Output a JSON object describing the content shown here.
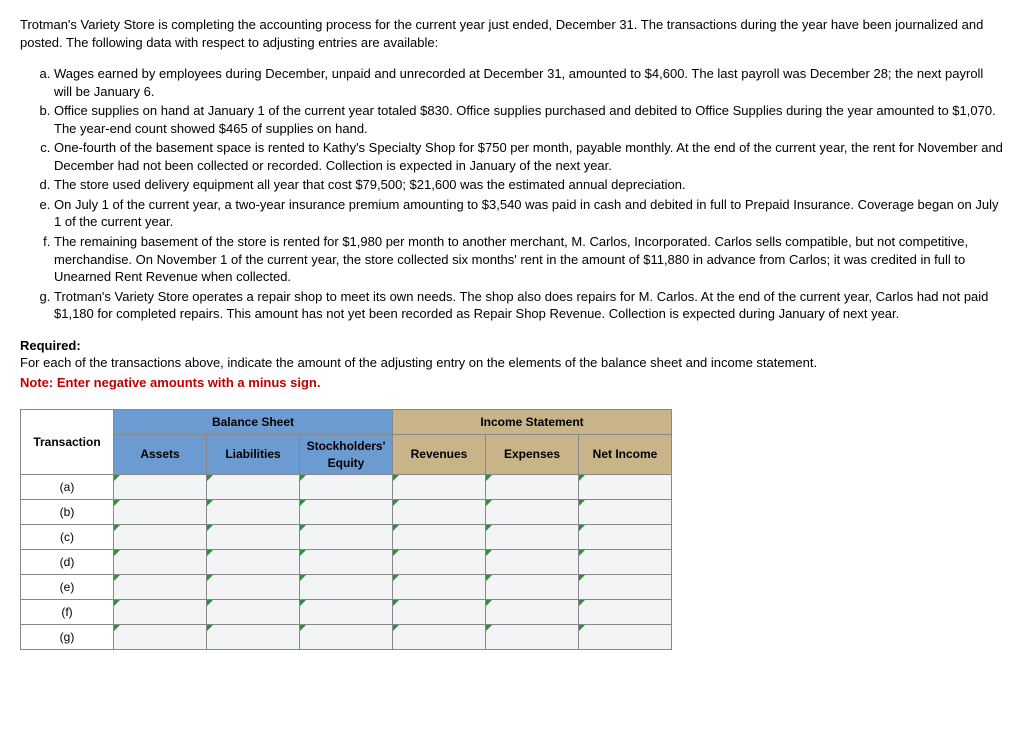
{
  "intro": "Trotman's Variety Store is completing the accounting process for the current year just ended, December 31. The transactions during the year have been journalized and posted. The following data with respect to adjusting entries are available:",
  "items": {
    "a": "Wages earned by employees during December, unpaid and unrecorded at December 31, amounted to $4,600. The last payroll was December 28; the next payroll will be January 6.",
    "b": "Office supplies on hand at January 1 of the current year totaled $830. Office supplies purchased and debited to Office Supplies during the year amounted to $1,070. The year-end count showed $465 of supplies on hand.",
    "c": "One-fourth of the basement space is rented to Kathy's Specialty Shop for $750 per month, payable monthly. At the end of the current year, the rent for November and December had not been collected or recorded. Collection is expected in January of the next year.",
    "d": "The store used delivery equipment all year that cost $79,500; $21,600 was the estimated annual depreciation.",
    "e": "On July 1 of the current year, a two-year insurance premium amounting to $3,540 was paid in cash and debited in full to Prepaid Insurance. Coverage began on July 1 of the current year.",
    "f": "The remaining basement of the store is rented for $1,980 per month to another merchant, M. Carlos, Incorporated. Carlos sells compatible, but not competitive, merchandise. On November 1 of the current year, the store collected six months' rent in the amount of $11,880 in advance from Carlos; it was credited in full to Unearned Rent Revenue when collected.",
    "g": "Trotman's Variety Store operates a repair shop to meet its own needs. The shop also does repairs for M. Carlos. At the end of the current year, Carlos had not paid $1,180 for completed repairs. This amount has not yet been recorded as Repair Shop Revenue. Collection is expected during January of next year."
  },
  "required_label": "Required:",
  "required_text": "For each of the transactions above, indicate the amount of the adjusting entry on the elements of the balance sheet and income statement.",
  "note": "Note: Enter negative amounts with a minus sign.",
  "table": {
    "group_headers": {
      "bs": "Balance Sheet",
      "is": "Income Statement"
    },
    "col_headers": {
      "transaction": "Transaction",
      "assets": "Assets",
      "liabilities": "Liabilities",
      "equity": "Stockholders' Equity",
      "revenues": "Revenues",
      "expenses": "Expenses",
      "netincome": "Net Income"
    },
    "rows": [
      "(a)",
      "(b)",
      "(c)",
      "(d)",
      "(e)",
      "(f)",
      "(g)"
    ],
    "colors": {
      "blue": "#6c9bd1",
      "tan": "#c9b388",
      "cellbg": "#f2f4f5",
      "border": "#888888"
    }
  }
}
